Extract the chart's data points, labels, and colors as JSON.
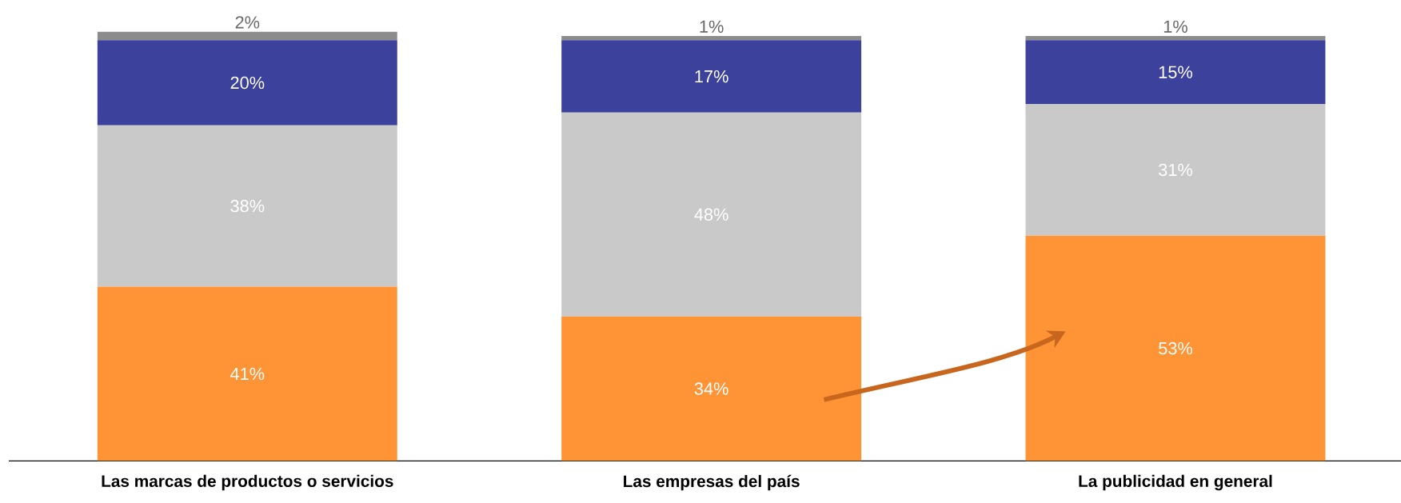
{
  "chart_data": {
    "type": "bar",
    "stacked": true,
    "categories": [
      "Las marcas de productos o servicios",
      "Las empresas del país",
      "La publicidad en general"
    ],
    "series": [
      {
        "color": "#ff9436",
        "values": [
          41,
          34,
          53
        ],
        "value_labels": [
          "41%",
          "34%",
          "53%"
        ]
      },
      {
        "color": "#c9c9c9",
        "values": [
          38,
          48,
          31
        ],
        "value_labels": [
          "38%",
          "48%",
          "31%"
        ]
      },
      {
        "color": "#3c429c",
        "values": [
          20,
          17,
          15
        ],
        "value_labels": [
          "20%",
          "17%",
          "15%"
        ]
      },
      {
        "color": "#8c8c8c",
        "values": [
          2,
          1,
          1
        ],
        "value_labels": [
          "2%",
          "1%",
          "1%"
        ]
      }
    ]
  }
}
